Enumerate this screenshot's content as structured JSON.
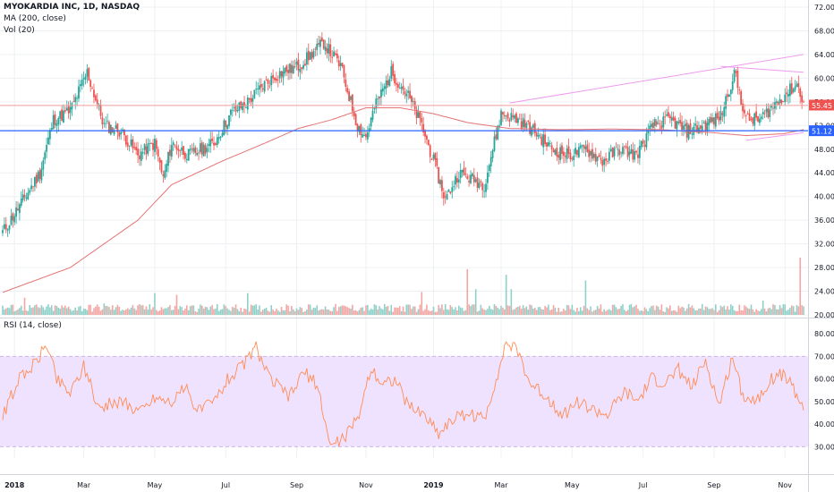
{
  "title_line": "MYOKARDIA INC, 1D, NASDAQ",
  "indicators": [
    "MA (200, close)",
    "Vol (20)"
  ],
  "rsi_label": "RSI (14, close)",
  "colors": {
    "up": "#26a69a",
    "down": "#ef5350",
    "ma": "#e57373",
    "support": "#2962ff",
    "trend": "#ef9aef",
    "rsi_line": "#ff8c55",
    "rsi_band": "#efe2ff",
    "grid": "#edf0f3"
  },
  "chart_data": {
    "type": "candlestick",
    "price_axis": {
      "range": [
        20,
        72
      ],
      "ticks": [
        "72.00",
        "68.00",
        "64.00",
        "60.00",
        "56.00",
        "52.00",
        "48.00",
        "44.00",
        "40.00",
        "36.00",
        "32.00",
        "28.00",
        "24.00",
        "20.00"
      ]
    },
    "rsi_axis": {
      "range": [
        25,
        82
      ],
      "ticks": [
        "80.00",
        "70.00",
        "60.00",
        "50.00",
        "40.00",
        "30.00"
      ],
      "band": [
        30,
        70
      ]
    },
    "x_ticks": [
      {
        "label": "2018",
        "i": 7
      },
      {
        "label": "Mar",
        "i": 48
      },
      {
        "label": "May",
        "i": 90
      },
      {
        "label": "Jul",
        "i": 132
      },
      {
        "label": "Sep",
        "i": 174
      },
      {
        "label": "Nov",
        "i": 215
      },
      {
        "label": "2019",
        "i": 255
      },
      {
        "label": "Mar",
        "i": 295
      },
      {
        "label": "May",
        "i": 337
      },
      {
        "label": "Jul",
        "i": 379
      },
      {
        "label": "Sep",
        "i": 421
      },
      {
        "label": "Nov",
        "i": 463
      }
    ],
    "n_bars": 475,
    "close_anchors": [
      [
        0,
        34
      ],
      [
        8,
        37.5
      ],
      [
        22,
        44
      ],
      [
        30,
        53
      ],
      [
        40,
        54.5
      ],
      [
        50,
        61
      ],
      [
        60,
        52
      ],
      [
        70,
        51
      ],
      [
        80,
        47
      ],
      [
        90,
        49
      ],
      [
        95,
        43
      ],
      [
        100,
        49
      ],
      [
        110,
        47
      ],
      [
        125,
        49
      ],
      [
        135,
        54
      ],
      [
        145,
        56
      ],
      [
        155,
        59
      ],
      [
        165,
        61
      ],
      [
        175,
        62
      ],
      [
        190,
        66
      ],
      [
        200,
        62
      ],
      [
        205,
        57
      ],
      [
        210,
        52
      ],
      [
        215,
        50
      ],
      [
        220,
        55
      ],
      [
        230,
        61
      ],
      [
        240,
        57
      ],
      [
        248,
        52
      ],
      [
        255,
        46
      ],
      [
        262,
        39.5
      ],
      [
        270,
        44
      ],
      [
        285,
        42
      ],
      [
        295,
        54
      ],
      [
        305,
        53
      ],
      [
        315,
        51
      ],
      [
        325,
        48
      ],
      [
        335,
        47
      ],
      [
        345,
        48
      ],
      [
        355,
        46
      ],
      [
        365,
        48
      ],
      [
        375,
        47
      ],
      [
        385,
        52
      ],
      [
        395,
        53
      ],
      [
        405,
        51
      ],
      [
        415,
        52
      ],
      [
        425,
        53.5
      ],
      [
        433,
        61
      ],
      [
        440,
        53
      ],
      [
        448,
        53
      ],
      [
        455,
        55
      ],
      [
        462,
        57
      ],
      [
        470,
        59
      ],
      [
        474,
        56
      ]
    ],
    "ma200": {
      "label": "MA 200",
      "anchors": [
        [
          0,
          23.8
        ],
        [
          40,
          28
        ],
        [
          80,
          36
        ],
        [
          100,
          42
        ],
        [
          130,
          46
        ],
        [
          155,
          49
        ],
        [
          175,
          51.5
        ],
        [
          195,
          53
        ],
        [
          215,
          55
        ],
        [
          235,
          55
        ],
        [
          255,
          54
        ],
        [
          275,
          52.5
        ],
        [
          300,
          51.5
        ],
        [
          330,
          51.3
        ],
        [
          360,
          51.4
        ],
        [
          390,
          51.3
        ],
        [
          420,
          50.8
        ],
        [
          440,
          50.3
        ],
        [
          462,
          50.6
        ],
        [
          474,
          51.3
        ]
      ]
    },
    "support_line": {
      "value": 51.12,
      "label": "51.12"
    },
    "resistance_line": {
      "value": 55.4
    },
    "trendlines": [
      {
        "from": [
          300,
          55.8
        ],
        "to": [
          474,
          64.0
        ]
      },
      {
        "from": [
          425,
          62.0
        ],
        "to": [
          474,
          61.0
        ]
      },
      {
        "from": [
          440,
          49.5
        ],
        "to": [
          474,
          50.8
        ]
      }
    ],
    "last_price": {
      "value": 55.45,
      "label": "55.45"
    },
    "volume": {
      "spikes": [
        [
          13,
          0.3
        ],
        [
          60,
          0.2
        ],
        [
          90,
          0.38
        ],
        [
          103,
          0.35
        ],
        [
          145,
          0.38
        ],
        [
          248,
          0.4
        ],
        [
          275,
          0.8
        ],
        [
          280,
          0.45
        ],
        [
          298,
          0.7
        ],
        [
          301,
          0.45
        ],
        [
          345,
          0.6
        ],
        [
          450,
          0.25
        ],
        [
          472,
          1.0
        ]
      ]
    },
    "rsi_anchors": [
      [
        0,
        44
      ],
      [
        10,
        60
      ],
      [
        20,
        68
      ],
      [
        26,
        76
      ],
      [
        32,
        60
      ],
      [
        40,
        54
      ],
      [
        48,
        66
      ],
      [
        56,
        48
      ],
      [
        70,
        50
      ],
      [
        82,
        46
      ],
      [
        90,
        52
      ],
      [
        100,
        50
      ],
      [
        108,
        56
      ],
      [
        116,
        46
      ],
      [
        125,
        50
      ],
      [
        133,
        60
      ],
      [
        142,
        66
      ],
      [
        150,
        74
      ],
      [
        158,
        60
      ],
      [
        170,
        52
      ],
      [
        178,
        63
      ],
      [
        186,
        58
      ],
      [
        194,
        30
      ],
      [
        202,
        34
      ],
      [
        210,
        42
      ],
      [
        218,
        65
      ],
      [
        225,
        58
      ],
      [
        232,
        60
      ],
      [
        240,
        48
      ],
      [
        250,
        44
      ],
      [
        258,
        36
      ],
      [
        266,
        42
      ],
      [
        275,
        45
      ],
      [
        285,
        42
      ],
      [
        292,
        60
      ],
      [
        298,
        76
      ],
      [
        305,
        72
      ],
      [
        312,
        58
      ],
      [
        322,
        52
      ],
      [
        332,
        44
      ],
      [
        340,
        50
      ],
      [
        350,
        46
      ],
      [
        358,
        44
      ],
      [
        368,
        54
      ],
      [
        376,
        50
      ],
      [
        384,
        60
      ],
      [
        392,
        58
      ],
      [
        400,
        64
      ],
      [
        408,
        56
      ],
      [
        416,
        68
      ],
      [
        424,
        48
      ],
      [
        432,
        70
      ],
      [
        438,
        53
      ],
      [
        446,
        50
      ],
      [
        454,
        60
      ],
      [
        462,
        62
      ],
      [
        468,
        56
      ],
      [
        474,
        47
      ]
    ]
  }
}
